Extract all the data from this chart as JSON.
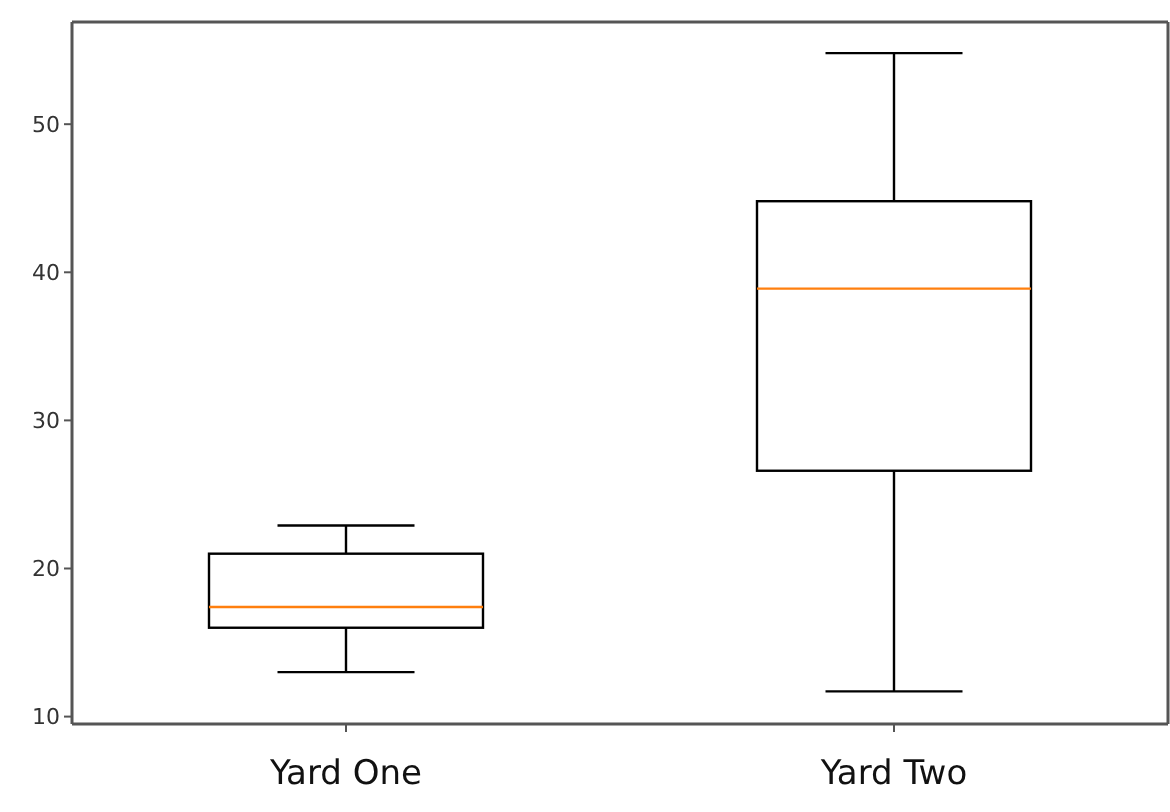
{
  "chart_data": {
    "type": "box",
    "categories": [
      "Yard One",
      "Yard Two"
    ],
    "boxes": [
      {
        "low": 13.0,
        "q1": 16.0,
        "median": 17.4,
        "q3": 21.0,
        "high": 22.9
      },
      {
        "low": 11.7,
        "q1": 26.6,
        "median": 38.9,
        "q3": 44.8,
        "high": 54.8
      }
    ],
    "color": "#000000",
    "ylim": [
      9.5,
      56.9
    ],
    "yticks": [
      10,
      20,
      30,
      40,
      50
    ]
  }
}
